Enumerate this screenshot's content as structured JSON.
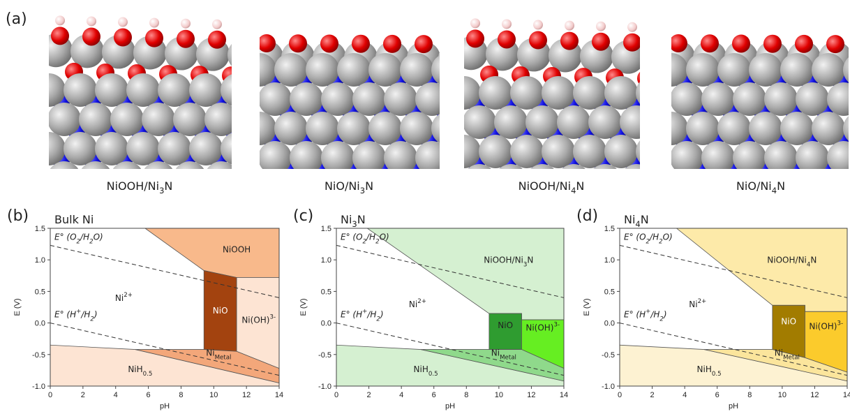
{
  "figure": {
    "panel": "(a)",
    "structures": [
      [
        {
          "t": "NiOOH/Ni"
        },
        {
          "t": "3",
          "s": "sub"
        },
        {
          "t": "N"
        }
      ],
      [
        {
          "t": "NiO/Ni"
        },
        {
          "t": "3",
          "s": "sub"
        },
        {
          "t": "N"
        }
      ],
      [
        {
          "t": "NiOOH/Ni"
        },
        {
          "t": "4",
          "s": "sub"
        },
        {
          "t": "N"
        }
      ],
      [
        {
          "t": "NiO/Ni"
        },
        {
          "t": "4",
          "s": "sub"
        },
        {
          "t": "N"
        }
      ]
    ]
  },
  "chart_data": [
    {
      "type": "area",
      "panel": "(b)",
      "title": [
        {
          "t": "Bulk Ni"
        }
      ],
      "xlabel": "pH",
      "ylabel": "E (V)",
      "xlim": [
        0,
        14
      ],
      "ylim": [
        -1.0,
        1.5
      ],
      "xticks": [
        0,
        2,
        4,
        6,
        8,
        10,
        12,
        14
      ],
      "yticks": [
        {
          "value": -1.0,
          "label": "-1.0"
        },
        -0.5,
        {
          "value": 0.0,
          "label": "0.0"
        },
        0.5,
        {
          "value": 1.0,
          "label": "1.0"
        },
        1.5
      ],
      "regions": [
        {
          "label": [
            {
              "t": "Ni"
            },
            {
              "t": "2+",
              "s": "sup"
            }
          ],
          "color": "#ffffff",
          "points": [
            [
              0,
              -1.0
            ],
            [
              0,
              1.5
            ],
            [
              14,
              1.5
            ],
            [
              14,
              -1.0
            ]
          ]
        },
        {
          "label": [
            {
              "t": "NiOOH"
            }
          ],
          "color": "#f8b98b",
          "points": [
            [
              5.8,
              1.5
            ],
            [
              14,
              1.5
            ],
            [
              14,
              0.72
            ],
            [
              11.4,
              0.72
            ],
            [
              9.4,
              0.83
            ]
          ]
        },
        {
          "label": [
            {
              "t": "NiO"
            }
          ],
          "color": "#a3430f",
          "points": [
            [
              9.4,
              0.83
            ],
            [
              11.4,
              0.72
            ],
            [
              11.4,
              -0.45
            ],
            [
              9.4,
              -0.42
            ]
          ]
        },
        {
          "label": [
            {
              "t": "Ni(OH)"
            },
            {
              "t": "3-",
              "s": "sup"
            }
          ],
          "color": "#fde4d3",
          "points": [
            [
              11.4,
              0.72
            ],
            [
              14,
              0.72
            ],
            [
              14,
              -0.72
            ],
            [
              11.4,
              -0.45
            ]
          ]
        },
        {
          "label": [
            {
              "t": "NiH"
            },
            {
              "t": "0.5",
              "s": "sub"
            }
          ],
          "color": "#fde4d3",
          "points": [
            [
              0,
              -0.35
            ],
            [
              5.2,
              -0.42
            ],
            [
              14,
              -0.95
            ],
            [
              14,
              -1.0
            ],
            [
              0,
              -1.0
            ]
          ]
        },
        {
          "label": [
            {
              "t": "Ni"
            },
            {
              "t": "Metal",
              "s": "sub"
            }
          ],
          "color": "#f3a77a",
          "points": [
            [
              5.2,
              -0.42
            ],
            [
              9.4,
              -0.42
            ],
            [
              11.4,
              -0.45
            ],
            [
              14,
              -0.72
            ],
            [
              14,
              -0.95
            ]
          ]
        }
      ],
      "lines": [
        {
          "label": [
            {
              "t": "E° (O"
            },
            {
              "t": "2",
              "s": "sub"
            },
            {
              "t": "/H"
            },
            {
              "t": "2",
              "s": "sub"
            },
            {
              "t": "O)"
            }
          ],
          "points": [
            [
              0,
              1.23
            ],
            [
              14,
              0.4
            ]
          ]
        },
        {
          "label": [
            {
              "t": "E° (H"
            },
            {
              "t": "+",
              "s": "sup"
            },
            {
              "t": "/H"
            },
            {
              "t": "2",
              "s": "sub"
            },
            {
              "t": ")"
            }
          ],
          "points": [
            [
              0,
              0.0
            ],
            [
              14,
              -0.83
            ]
          ]
        }
      ]
    },
    {
      "type": "area",
      "panel": "(c)",
      "title": [
        {
          "t": "Ni"
        },
        {
          "t": "3",
          "s": "sub"
        },
        {
          "t": "N"
        }
      ],
      "xlabel": "pH",
      "ylabel": "E (V)",
      "xlim": [
        0,
        14
      ],
      "ylim": [
        -1.0,
        1.5
      ],
      "xticks": [
        0,
        2,
        4,
        6,
        8,
        10,
        12,
        14
      ],
      "yticks": [
        {
          "value": -1.0,
          "label": "-1.0"
        },
        -0.5,
        {
          "value": 0.0,
          "label": "0.0"
        },
        0.5,
        {
          "value": 1.0,
          "label": "1.0"
        },
        1.5
      ],
      "regions": [
        {
          "label": [
            {
              "t": "Ni"
            },
            {
              "t": "2+",
              "s": "sup"
            }
          ],
          "color": "#ffffff",
          "points": [
            [
              0,
              -1.0
            ],
            [
              0,
              1.5
            ],
            [
              14,
              1.5
            ],
            [
              14,
              -1.0
            ]
          ]
        },
        {
          "label": [
            {
              "t": "NiOOH/Ni"
            },
            {
              "t": "3",
              "s": "sub"
            },
            {
              "t": "N"
            }
          ],
          "color": "#d5f0d1",
          "points": [
            [
              1.9,
              1.5
            ],
            [
              14,
              1.5
            ],
            [
              14,
              0.05
            ],
            [
              11.4,
              0.05
            ],
            [
              11.4,
              0.15
            ],
            [
              9.4,
              0.15
            ]
          ]
        },
        {
          "label": [
            {
              "t": "NiO"
            }
          ],
          "color": "#2f9c30",
          "points": [
            [
              9.4,
              0.15
            ],
            [
              11.4,
              0.15
            ],
            [
              11.4,
              -0.42
            ],
            [
              9.4,
              -0.42
            ]
          ]
        },
        {
          "label": [
            {
              "t": "Ni(OH)"
            },
            {
              "t": "3-",
              "s": "sup"
            }
          ],
          "color": "#66ee22",
          "points": [
            [
              11.4,
              0.05
            ],
            [
              14,
              0.05
            ],
            [
              14,
              -0.72
            ],
            [
              11.4,
              -0.42
            ]
          ]
        },
        {
          "label": [
            {
              "t": "NiH"
            },
            {
              "t": "0.5",
              "s": "sub"
            }
          ],
          "color": "#d5f0d1",
          "points": [
            [
              0,
              -0.35
            ],
            [
              5.2,
              -0.42
            ],
            [
              14,
              -0.92
            ],
            [
              14,
              -1.0
            ],
            [
              0,
              -1.0
            ]
          ]
        },
        {
          "label": [
            {
              "t": "Ni"
            },
            {
              "t": "Metal",
              "s": "sub"
            }
          ],
          "color": "#8fd98b",
          "points": [
            [
              5.2,
              -0.42
            ],
            [
              11.4,
              -0.42
            ],
            [
              14,
              -0.72
            ],
            [
              14,
              -0.92
            ]
          ]
        }
      ],
      "lines": [
        {
          "label": [
            {
              "t": "E° (O"
            },
            {
              "t": "2",
              "s": "sub"
            },
            {
              "t": "/H"
            },
            {
              "t": "2",
              "s": "sub"
            },
            {
              "t": "O)"
            }
          ],
          "points": [
            [
              0,
              1.23
            ],
            [
              14,
              0.4
            ]
          ]
        },
        {
          "label": [
            {
              "t": "E° (H"
            },
            {
              "t": "+",
              "s": "sup"
            },
            {
              "t": "/H"
            },
            {
              "t": "2",
              "s": "sub"
            },
            {
              "t": ")"
            }
          ],
          "points": [
            [
              0,
              0.0
            ],
            [
              14,
              -0.83
            ]
          ]
        }
      ]
    },
    {
      "type": "area",
      "panel": "(d)",
      "title": [
        {
          "t": "Ni"
        },
        {
          "t": "4",
          "s": "sub"
        },
        {
          "t": "N"
        }
      ],
      "xlabel": "pH",
      "ylabel": "E (V)",
      "xlim": [
        0,
        14
      ],
      "ylim": [
        -1.0,
        1.5
      ],
      "xticks": [
        0,
        2,
        4,
        6,
        8,
        10,
        12,
        14
      ],
      "yticks": [
        {
          "value": -1.0,
          "label": "-1.0"
        },
        -0.5,
        {
          "value": 0.0,
          "label": "0.0"
        },
        0.5,
        {
          "value": 1.0,
          "label": "1.0"
        },
        1.5
      ],
      "regions": [
        {
          "label": [
            {
              "t": "Ni"
            },
            {
              "t": "2+",
              "s": "sup"
            }
          ],
          "color": "#ffffff",
          "points": [
            [
              0,
              -1.0
            ],
            [
              0,
              1.5
            ],
            [
              14,
              1.5
            ],
            [
              14,
              -1.0
            ]
          ]
        },
        {
          "label": [
            {
              "t": "NiOOH/Ni"
            },
            {
              "t": "4",
              "s": "sub"
            },
            {
              "t": "N"
            }
          ],
          "color": "#fdeaa9",
          "points": [
            [
              3.5,
              1.5
            ],
            [
              14,
              1.5
            ],
            [
              14,
              0.18
            ],
            [
              11.4,
              0.18
            ],
            [
              11.4,
              0.28
            ],
            [
              9.4,
              0.28
            ]
          ]
        },
        {
          "label": [
            {
              "t": "NiO"
            }
          ],
          "color": "#a27c00",
          "points": [
            [
              9.4,
              0.28
            ],
            [
              11.4,
              0.28
            ],
            [
              11.4,
              -0.55
            ],
            [
              9.4,
              -0.42
            ]
          ]
        },
        {
          "label": [
            {
              "t": "Ni(OH)"
            },
            {
              "t": "3-",
              "s": "sup"
            }
          ],
          "color": "#fbcb2c",
          "points": [
            [
              11.4,
              0.18
            ],
            [
              14,
              0.18
            ],
            [
              14,
              -0.78
            ],
            [
              11.4,
              -0.55
            ]
          ]
        },
        {
          "label": [
            {
              "t": "NiH"
            },
            {
              "t": "0.5",
              "s": "sub"
            }
          ],
          "color": "#fdf2d2",
          "points": [
            [
              0,
              -0.35
            ],
            [
              5.2,
              -0.42
            ],
            [
              14,
              -0.92
            ],
            [
              14,
              -1.0
            ],
            [
              0,
              -1.0
            ]
          ]
        },
        {
          "label": [
            {
              "t": "Ni"
            },
            {
              "t": "Metal",
              "s": "sub"
            }
          ],
          "color": "#fbe59c",
          "points": [
            [
              5.2,
              -0.42
            ],
            [
              9.4,
              -0.42
            ],
            [
              11.4,
              -0.55
            ],
            [
              14,
              -0.78
            ],
            [
              14,
              -0.92
            ]
          ]
        }
      ],
      "lines": [
        {
          "label": [
            {
              "t": "E° (O"
            },
            {
              "t": "2",
              "s": "sub"
            },
            {
              "t": "/H"
            },
            {
              "t": "2",
              "s": "sub"
            },
            {
              "t": "O)"
            }
          ],
          "points": [
            [
              0,
              1.23
            ],
            [
              14,
              0.4
            ]
          ]
        },
        {
          "label": [
            {
              "t": "E° (H"
            },
            {
              "t": "+",
              "s": "sup"
            },
            {
              "t": "/H"
            },
            {
              "t": "2",
              "s": "sub"
            },
            {
              "t": ")"
            }
          ],
          "points": [
            [
              0,
              0.0
            ],
            [
              14,
              -0.83
            ]
          ]
        }
      ]
    }
  ]
}
